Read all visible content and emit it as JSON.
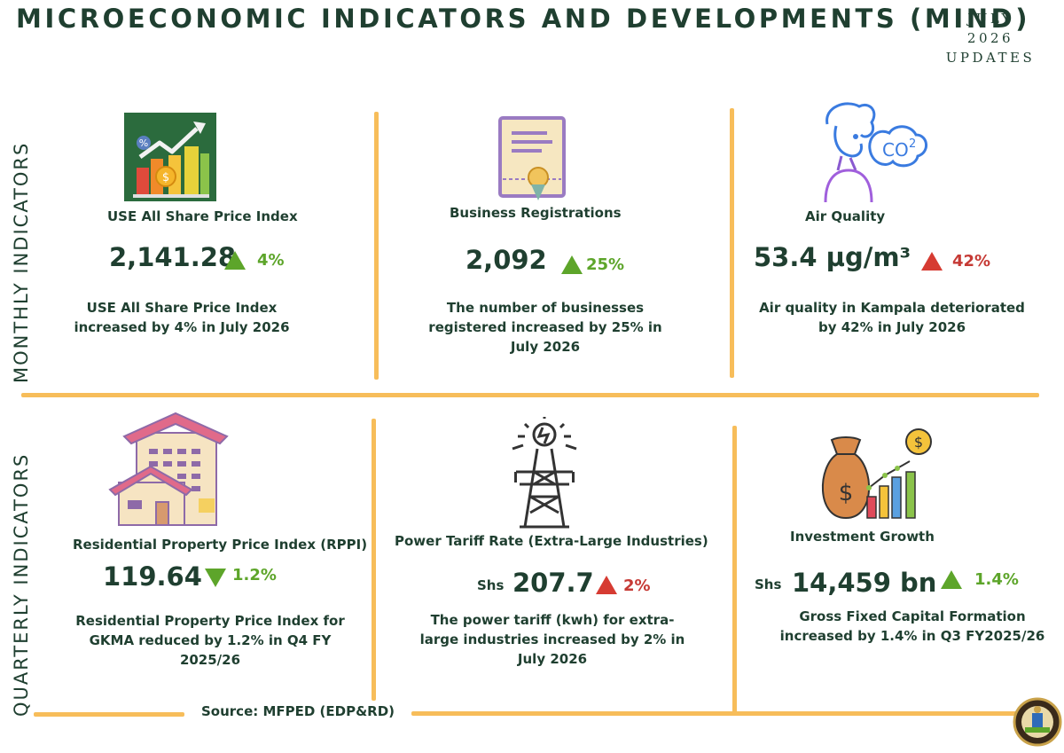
{
  "header": {
    "title": "MICROECONOMIC INDICATORS AND DEVELOPMENTS (MIND)",
    "month": "JULY",
    "year": "2026",
    "updates": "UPDATES"
  },
  "sections": {
    "monthly_label": "MONTHLY INDICATORS",
    "quarterly_label": "QUARTERLY INDICATORS"
  },
  "monthly": [
    {
      "title": "USE All Share Price Index",
      "value": "2,141.28",
      "direction": "up",
      "change": "4%",
      "description": "USE All Share Price Index increased by 4% in July 2026",
      "icon": "stock-chart-icon"
    },
    {
      "title": "Business Registrations",
      "value": "2,092",
      "direction": "up",
      "change": "25%",
      "description": "The number of businesses registered increased by 25% in July 2026",
      "icon": "certificate-icon"
    },
    {
      "title": "Air Quality",
      "value": "53.4 µg/m³",
      "direction": "up",
      "change": "42%",
      "description": "Air quality in Kampala deteriorated by 42% in July 2026",
      "icon": "person-co2-icon"
    }
  ],
  "quarterly": [
    {
      "title": "Residential Property Price Index (RPPI)",
      "value": "119.64",
      "direction": "down",
      "change": "1.2%",
      "description": "Residential Property Price Index for GKMA reduced by 1.2% in Q4 FY 2025/26",
      "icon": "houses-icon"
    },
    {
      "title": "Power  Tariff Rate (Extra-Large Industries)",
      "prefix": "Shs",
      "value": "207.7",
      "direction": "up",
      "change": "2%",
      "description": "The power tariff (kwh) for extra-large industries increased by 2% in July 2026",
      "icon": "power-tower-icon"
    },
    {
      "title": "Investment Growth",
      "prefix": "Shs",
      "value": "14,459 bn",
      "direction": "up",
      "change": "1.4%",
      "description": "Gross Fixed Capital Formation increased by 1.4% in Q3 FY2025/26",
      "icon": "money-bag-growth-icon"
    }
  ],
  "footer": {
    "source": "Source: MFPED (EDP&RD)"
  },
  "colors": {
    "dark_green": "#1f3f30",
    "accent_yellow": "#f7bd5a",
    "positive_green": "#5da52a",
    "negative_red": "#d63b32"
  }
}
